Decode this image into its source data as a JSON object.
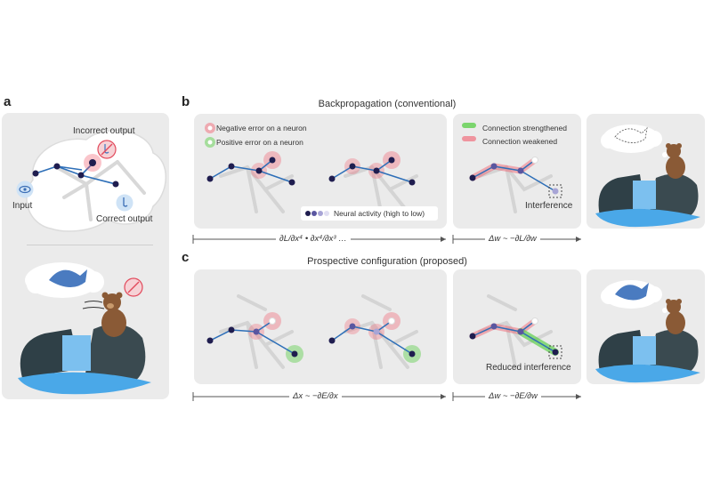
{
  "panels": {
    "a": {
      "letter": "a",
      "labels": {
        "incorrect_output": "Incorrect output",
        "input": "Input",
        "correct_output": "Correct output"
      }
    },
    "b": {
      "letter": "b",
      "title": "Backpropagation (conventional)",
      "legend": {
        "negative_error": "Negative error on a neuron",
        "positive_error": "Positive error on a neuron",
        "neural_activity": "Neural activity (high to low)",
        "connection_strengthened": "Connection strengthened",
        "connection_weakened": "Connection weakened"
      },
      "interference_label": "Interference",
      "formula_left": "∂L/∂x⁴ • ∂x⁴/∂x³ …",
      "formula_right": "Δw ~ −∂L/∂w"
    },
    "c": {
      "letter": "c",
      "title": "Prospective configuration (proposed)",
      "interference_label": "Reduced interference",
      "formula_left": "Δx ~ −∂E/∂x",
      "formula_right": "Δw ~ −∂E/∂w"
    }
  },
  "colors": {
    "panel_bg": "#ebebeb",
    "neuron": "#1f1d4f",
    "connection": "#2e6fb8",
    "negative_error": "#f25a6a",
    "positive_error": "#5fcf4e",
    "water": "#4aa8e8",
    "fish": "#4a7bc0",
    "bear": "#8a5a36"
  },
  "icons": [
    "eye-icon",
    "nose-icon",
    "no-smell-icon",
    "fish-icon",
    "bear-icon"
  ]
}
